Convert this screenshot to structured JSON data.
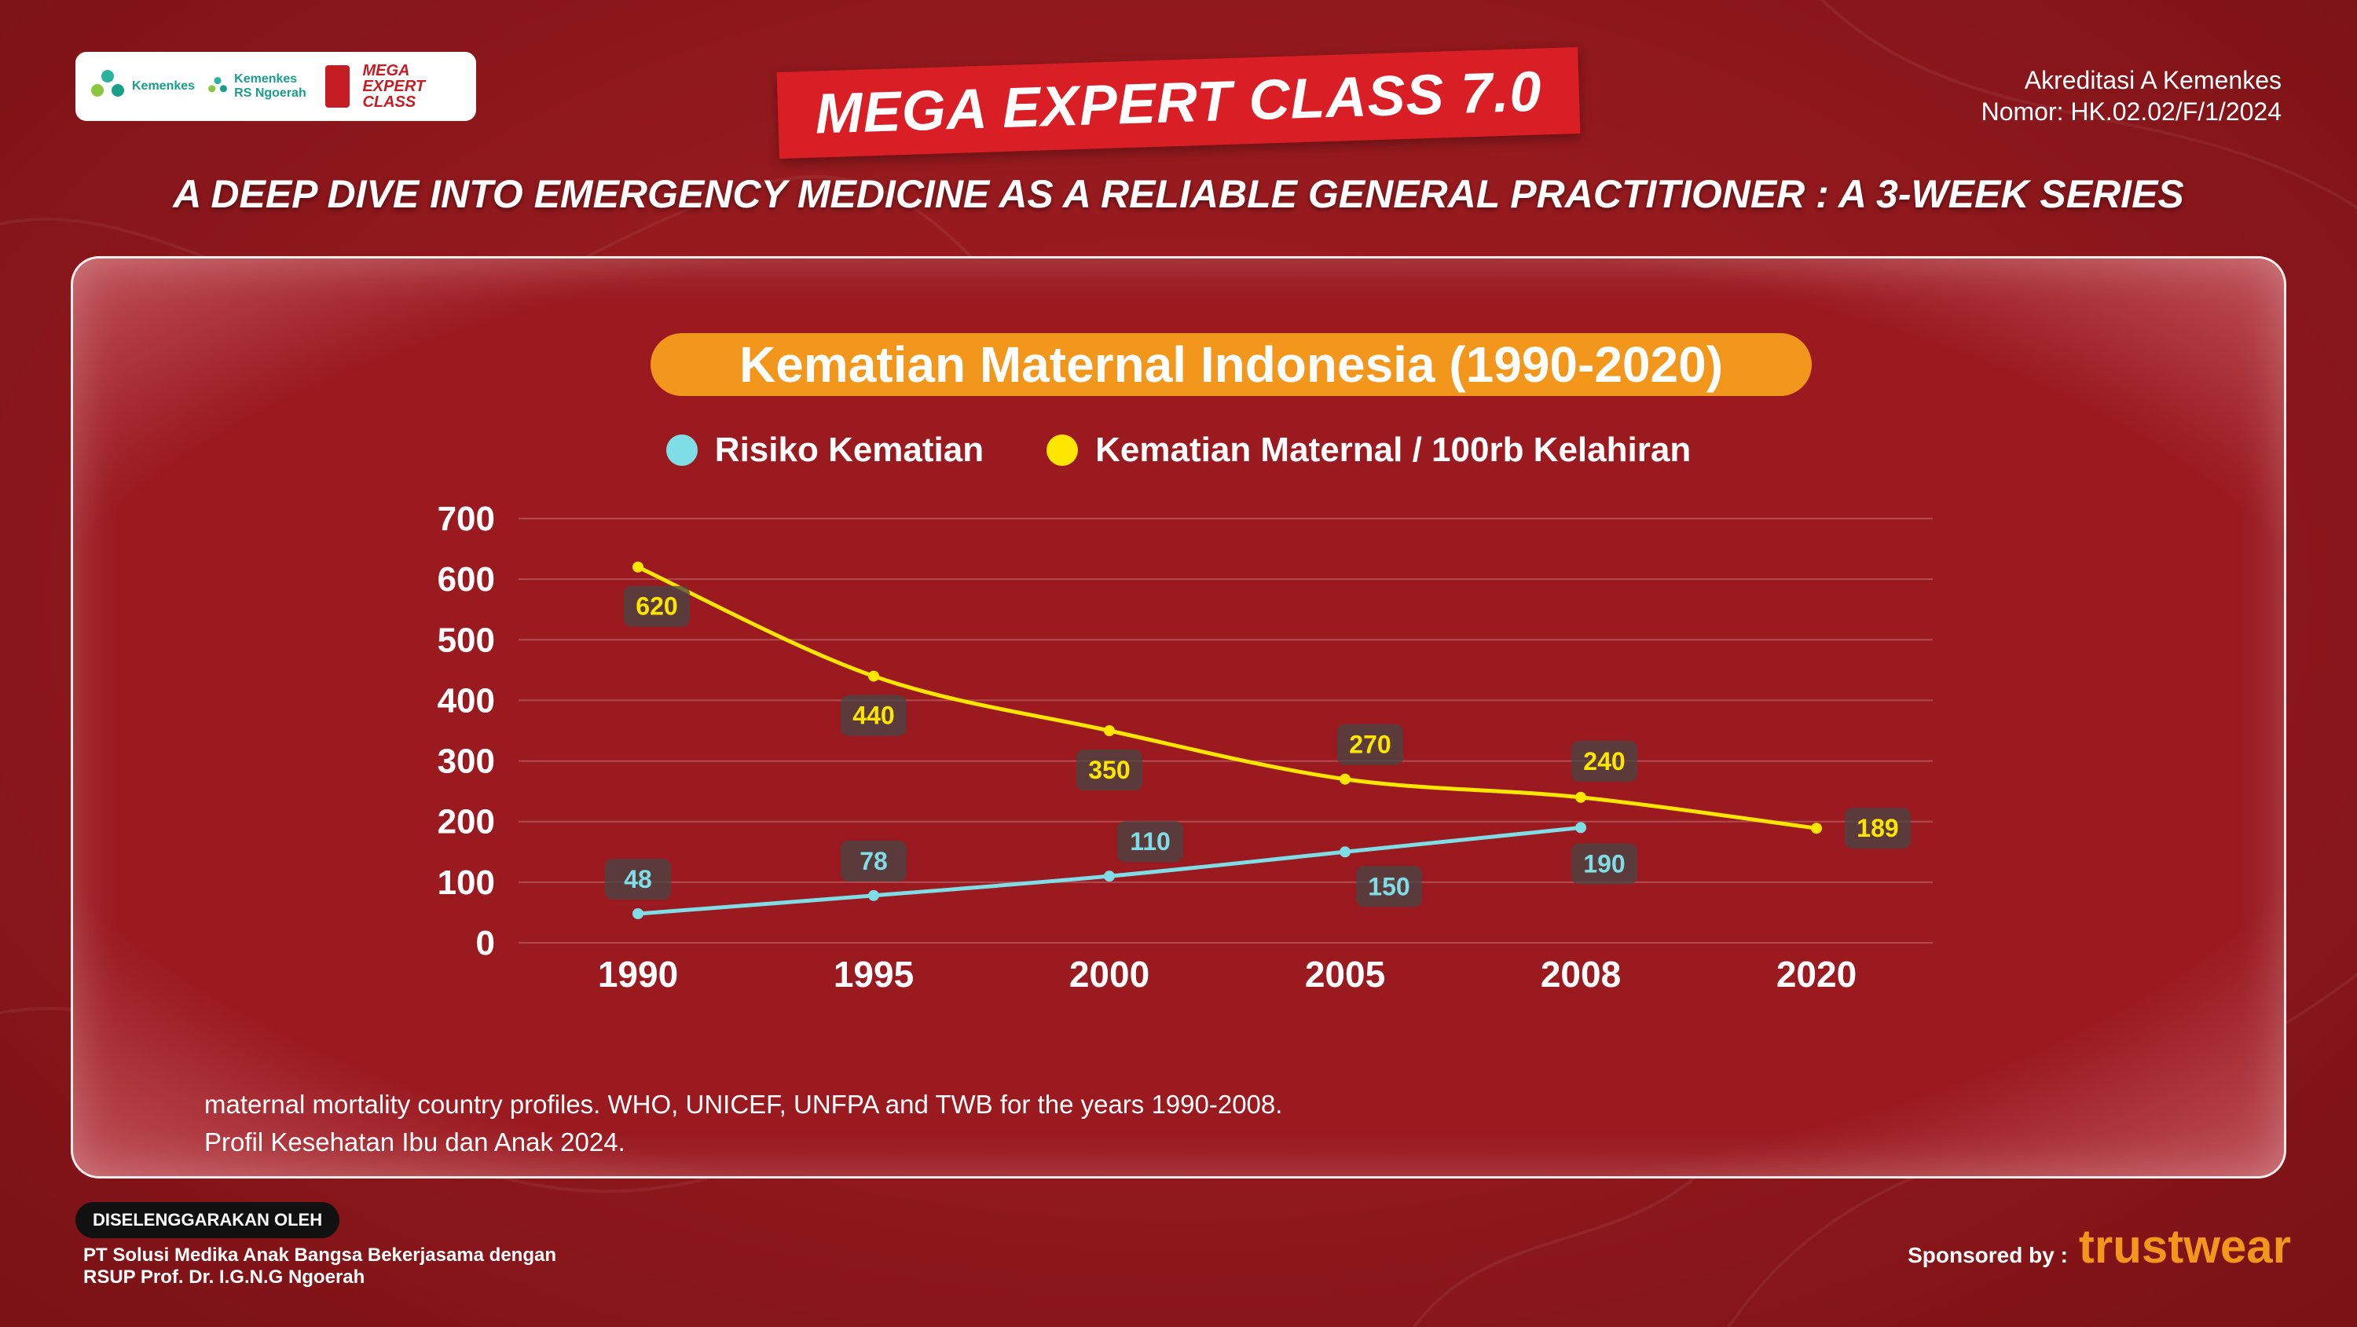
{
  "header": {
    "logos": [
      "Kemenkes",
      "Kemenkes RS Ngoerah",
      "MEGA EXPERT CLASS"
    ],
    "main_title": "MEGA EXPERT CLASS 7.0",
    "accreditation_line1": "Akreditasi A Kemenkes",
    "accreditation_line2": "Nomor: HK.02.02/F/1/2024",
    "subtitle": "A DEEP DIVE INTO EMERGENCY MEDICINE AS A RELIABLE GENERAL PRACTITIONER : A 3-WEEK SERIES"
  },
  "chart_data": {
    "type": "line",
    "title": "Kematian Maternal Indonesia (1990-2020)",
    "categories": [
      "1990",
      "1995",
      "2000",
      "2005",
      "2008",
      "2020"
    ],
    "series": [
      {
        "name": "Risiko Kematian",
        "color": "#7fdde6",
        "values": [
          48,
          78,
          110,
          150,
          190,
          null
        ]
      },
      {
        "name": "Kematian Maternal / 100rb Kelahiran",
        "color": "#ffe600",
        "values": [
          620,
          440,
          350,
          270,
          240,
          189
        ]
      }
    ],
    "ylim": [
      0,
      700
    ],
    "yticks": [
      0,
      100,
      200,
      300,
      400,
      500,
      600,
      700
    ],
    "grid": true,
    "legend": "top-center"
  },
  "source": {
    "line1": "maternal mortality country profiles. WHO, UNICEF, UNFPA and TWB for the years 1990-2008.",
    "line2": "Profil Kesehatan Ibu dan Anak 2024."
  },
  "footer": {
    "organizer_label": "DISELENGGARAKAN OLEH",
    "organizer_line1": "PT Solusi Medika Anak Bangsa Bekerjasama dengan",
    "organizer_line2": "RSUP Prof. Dr. I.G.N.G Ngoerah",
    "sponsor_label": "Sponsored by :",
    "sponsor_name": "trustwear"
  }
}
